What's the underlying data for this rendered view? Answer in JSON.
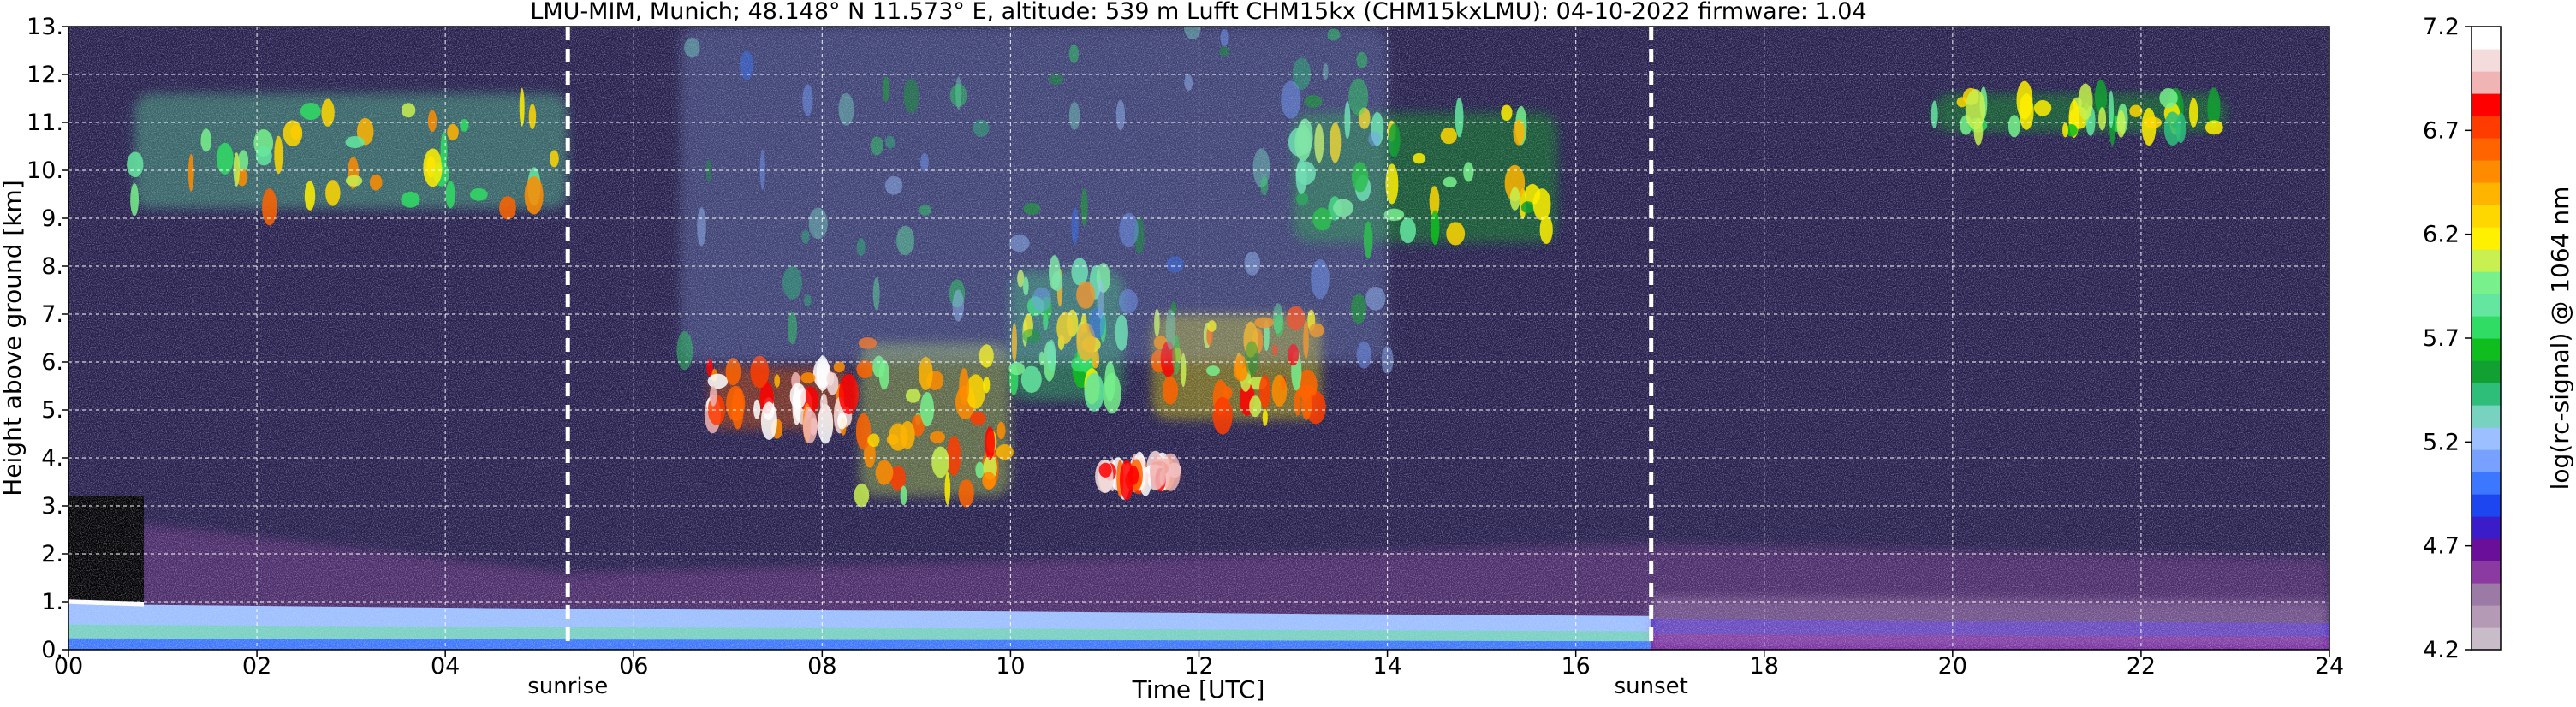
{
  "chart_data": {
    "type": "heatmap",
    "title": "LMU-MIM, Munich; 48.148° N 11.573° E, altitude: 539 m    Lufft CHM15kx (CHM15kxLMU): 04-10-2022    firmware: 1.04",
    "xlabel": "Time [UTC]",
    "ylabel": "Height above ground [km]",
    "xlim": [
      0,
      24
    ],
    "ylim": [
      0,
      13
    ],
    "x_ticks": [
      0,
      2,
      4,
      6,
      8,
      10,
      12,
      14,
      16,
      18,
      20,
      22,
      24
    ],
    "x_tick_labels": [
      "00",
      "02",
      "04",
      "06",
      "08",
      "10",
      "12",
      "14",
      "16",
      "18",
      "20",
      "22",
      "24"
    ],
    "y_ticks": [
      0,
      1,
      2,
      3,
      4,
      5,
      6,
      7,
      8,
      9,
      10,
      11,
      12,
      13
    ],
    "y_tick_labels": [
      "0.",
      "1.",
      "2.",
      "3.",
      "4.",
      "5.",
      "6.",
      "7.",
      "8.",
      "9.",
      "10.",
      "11.",
      "12.",
      "13."
    ],
    "grid": true,
    "annotations": [
      {
        "label": "sunrise",
        "time": 5.3
      },
      {
        "label": "sunset",
        "time": 16.8
      }
    ],
    "colorbar": {
      "label": "log(rc-signal) @ 1064 nm",
      "range": [
        4.2,
        7.2
      ],
      "ticks": [
        4.2,
        4.7,
        5.2,
        5.7,
        6.2,
        6.7,
        7.2
      ],
      "tick_labels": [
        "4.2",
        "4.7",
        "5.2",
        "5.7",
        "6.2",
        "6.7",
        "7.2"
      ],
      "colors": [
        "#c8bcc8",
        "#b49ab4",
        "#9c7aa6",
        "#8a3aa0",
        "#6a0f9a",
        "#3a1cc8",
        "#1e46f0",
        "#3c78ff",
        "#78a0ff",
        "#9cc0ff",
        "#78d2c0",
        "#2ebe7a",
        "#13a032",
        "#0fbe1e",
        "#30dc64",
        "#64e6a0",
        "#78f08c",
        "#c8f050",
        "#fff000",
        "#ffd700",
        "#ffb400",
        "#ff8c00",
        "#ff6400",
        "#ff3c00",
        "#ff0000",
        "#f0b4b4",
        "#f5dcdc",
        "#ffffff"
      ]
    },
    "layers": [
      {
        "name": "surface-layer-day",
        "t": [
          0,
          5.3,
          10,
          13,
          16.8
        ],
        "top_km": [
          0.95,
          0.85,
          0.8,
          0.75,
          0.7
        ]
      },
      {
        "name": "surface-layer-evening",
        "t": [
          16.8,
          24
        ],
        "top_km": [
          0.65,
          0.55
        ]
      },
      {
        "name": "boundary-noise-top",
        "t": [
          0,
          5.3,
          16.8,
          24
        ],
        "top_km": [
          2.8,
          1.6,
          2.2,
          1.9
        ]
      }
    ],
    "cloud_features": [
      {
        "t0": 0.7,
        "t1": 5.3,
        "z0": 9.2,
        "z1": 11.6,
        "level": 6.3
      },
      {
        "t0": 6.8,
        "t1": 8.3,
        "z0": 4.6,
        "z1": 5.9,
        "level": 7.0
      },
      {
        "t0": 8.4,
        "t1": 10.0,
        "z0": 3.2,
        "z1": 6.4,
        "level": 6.5
      },
      {
        "t0": 10.0,
        "t1": 11.2,
        "z0": 5.2,
        "z1": 7.9,
        "level": 6.2
      },
      {
        "t0": 11.5,
        "t1": 13.3,
        "z0": 4.8,
        "z1": 7.0,
        "level": 6.6
      },
      {
        "t0": 13.0,
        "t1": 15.8,
        "z0": 8.5,
        "z1": 11.2,
        "level": 6.1
      },
      {
        "t0": 6.5,
        "t1": 14.0,
        "z0": 6.0,
        "z1": 13.0,
        "level": 5.6
      },
      {
        "t0": 19.8,
        "t1": 22.9,
        "z0": 10.8,
        "z1": 11.6,
        "level": 6.0
      },
      {
        "t0": 11.0,
        "t1": 11.8,
        "z0": 3.5,
        "z1": 3.8,
        "level": 7.1
      }
    ]
  }
}
